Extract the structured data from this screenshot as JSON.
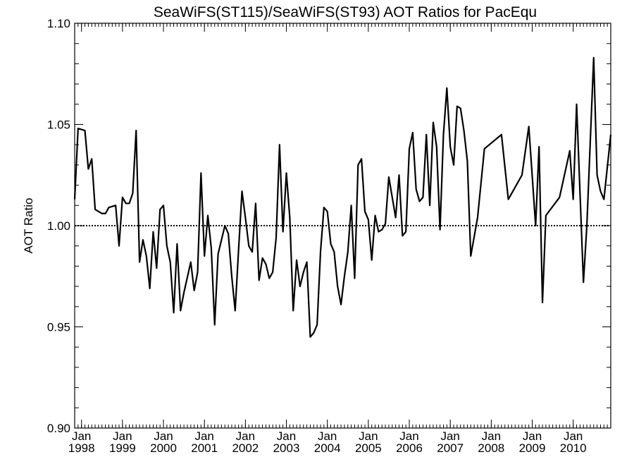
{
  "chart_data": {
    "type": "line",
    "title": "SeaWiFS(ST115)/SeaWiFS(ST93)  AOT Ratios for PacEqu",
    "ylabel": "AOT Ratio",
    "xlabel": "",
    "ylim": [
      0.9,
      1.1
    ],
    "xlim": [
      "1997-11",
      "2010-12"
    ],
    "yticks": [
      {
        "value": 0.9,
        "label": "0.90"
      },
      {
        "value": 0.95,
        "label": "0.95"
      },
      {
        "value": 1.0,
        "label": "1.00"
      },
      {
        "value": 1.05,
        "label": "1.05"
      },
      {
        "value": 1.1,
        "label": "1.10"
      }
    ],
    "xticks": [
      {
        "date": "1998-01",
        "month": "Jan",
        "year": "1998"
      },
      {
        "date": "1999-01",
        "month": "Jan",
        "year": "1999"
      },
      {
        "date": "2000-01",
        "month": "Jan",
        "year": "2000"
      },
      {
        "date": "2001-01",
        "month": "Jan",
        "year": "2001"
      },
      {
        "date": "2002-01",
        "month": "Jan",
        "year": "2002"
      },
      {
        "date": "2003-01",
        "month": "Jan",
        "year": "2003"
      },
      {
        "date": "2004-01",
        "month": "Jan",
        "year": "2004"
      },
      {
        "date": "2005-01",
        "month": "Jan",
        "year": "2005"
      },
      {
        "date": "2006-01",
        "month": "Jan",
        "year": "2006"
      },
      {
        "date": "2007-01",
        "month": "Jan",
        "year": "2007"
      },
      {
        "date": "2008-01",
        "month": "Jan",
        "year": "2008"
      },
      {
        "date": "2009-01",
        "month": "Jan",
        "year": "2009"
      },
      {
        "date": "2010-01",
        "month": "Jan",
        "year": "2010"
      }
    ],
    "reference_line": {
      "y": 1.0,
      "style": "dotted"
    },
    "grid": false,
    "series": [
      {
        "color": "#000000",
        "points": [
          [
            "1997-11",
            1.013
          ],
          [
            "1997-12",
            1.048
          ],
          [
            "1998-02",
            1.047
          ],
          [
            "1998-03",
            1.028
          ],
          [
            "1998-04",
            1.033
          ],
          [
            "1998-05",
            1.008
          ],
          [
            "1998-06",
            1.007
          ],
          [
            "1998-07",
            1.006
          ],
          [
            "1998-08",
            1.006
          ],
          [
            "1998-09",
            1.009
          ],
          [
            "1998-11",
            1.01
          ],
          [
            "1998-12",
            0.99
          ],
          [
            "1999-01",
            1.014
          ],
          [
            "1999-02",
            1.011
          ],
          [
            "1999-03",
            1.011
          ],
          [
            "1999-04",
            1.016
          ],
          [
            "1999-05",
            1.047
          ],
          [
            "1999-06",
            0.982
          ],
          [
            "1999-07",
            0.993
          ],
          [
            "1999-08",
            0.985
          ],
          [
            "1999-09",
            0.969
          ],
          [
            "1999-10",
            0.997
          ],
          [
            "1999-11",
            0.979
          ],
          [
            "1999-12",
            1.008
          ],
          [
            "2000-01",
            1.01
          ],
          [
            "2000-02",
            0.99
          ],
          [
            "2000-03",
            0.982
          ],
          [
            "2000-04",
            0.957
          ],
          [
            "2000-05",
            0.991
          ],
          [
            "2000-06",
            0.958
          ],
          [
            "2000-07",
            0.967
          ],
          [
            "2000-09",
            0.982
          ],
          [
            "2000-10",
            0.968
          ],
          [
            "2000-11",
            0.977
          ],
          [
            "2000-12",
            1.026
          ],
          [
            "2001-01",
            0.985
          ],
          [
            "2001-02",
            1.005
          ],
          [
            "2001-03",
            0.989
          ],
          [
            "2001-04",
            0.951
          ],
          [
            "2001-05",
            0.986
          ],
          [
            "2001-07",
            1.0
          ],
          [
            "2001-08",
            0.996
          ],
          [
            "2001-09",
            0.975
          ],
          [
            "2001-10",
            0.958
          ],
          [
            "2001-11",
            0.988
          ],
          [
            "2001-12",
            1.017
          ],
          [
            "2002-01",
            1.004
          ],
          [
            "2002-02",
            0.99
          ],
          [
            "2002-03",
            0.987
          ],
          [
            "2002-04",
            1.011
          ],
          [
            "2002-05",
            0.973
          ],
          [
            "2002-06",
            0.984
          ],
          [
            "2002-07",
            0.981
          ],
          [
            "2002-08",
            0.974
          ],
          [
            "2002-09",
            0.977
          ],
          [
            "2002-10",
            0.994
          ],
          [
            "2002-11",
            1.04
          ],
          [
            "2002-12",
            0.997
          ],
          [
            "2003-01",
            1.026
          ],
          [
            "2003-02",
            1.004
          ],
          [
            "2003-03",
            0.958
          ],
          [
            "2003-04",
            0.983
          ],
          [
            "2003-05",
            0.97
          ],
          [
            "2003-06",
            0.977
          ],
          [
            "2003-07",
            0.982
          ],
          [
            "2003-08",
            0.945
          ],
          [
            "2003-09",
            0.947
          ],
          [
            "2003-10",
            0.951
          ],
          [
            "2003-11",
            0.987
          ],
          [
            "2003-12",
            1.009
          ],
          [
            "2004-01",
            1.007
          ],
          [
            "2004-02",
            0.991
          ],
          [
            "2004-03",
            0.987
          ],
          [
            "2004-04",
            0.97
          ],
          [
            "2004-05",
            0.961
          ],
          [
            "2004-06",
            0.975
          ],
          [
            "2004-07",
            0.987
          ],
          [
            "2004-08",
            1.01
          ],
          [
            "2004-09",
            0.974
          ],
          [
            "2004-10",
            1.03
          ],
          [
            "2004-11",
            1.033
          ],
          [
            "2004-12",
            1.007
          ],
          [
            "2005-01",
            1.003
          ],
          [
            "2005-02",
            0.983
          ],
          [
            "2005-03",
            1.005
          ],
          [
            "2005-04",
            0.997
          ],
          [
            "2005-05",
            0.998
          ],
          [
            "2005-06",
            1.001
          ],
          [
            "2005-07",
            1.024
          ],
          [
            "2005-09",
            1.004
          ],
          [
            "2005-10",
            1.025
          ],
          [
            "2005-11",
            0.995
          ],
          [
            "2005-12",
            0.997
          ],
          [
            "2006-01",
            1.038
          ],
          [
            "2006-02",
            1.046
          ],
          [
            "2006-03",
            1.018
          ],
          [
            "2006-04",
            1.012
          ],
          [
            "2006-05",
            1.014
          ],
          [
            "2006-06",
            1.045
          ],
          [
            "2006-07",
            1.01
          ],
          [
            "2006-08",
            1.051
          ],
          [
            "2006-09",
            1.039
          ],
          [
            "2006-10",
            0.998
          ],
          [
            "2006-11",
            1.045
          ],
          [
            "2006-12",
            1.068
          ],
          [
            "2007-01",
            1.039
          ],
          [
            "2007-02",
            1.03
          ],
          [
            "2007-03",
            1.059
          ],
          [
            "2007-04",
            1.058
          ],
          [
            "2007-05",
            1.047
          ],
          [
            "2007-06",
            1.032
          ],
          [
            "2007-07",
            0.985
          ],
          [
            "2007-09",
            1.004
          ],
          [
            "2007-11",
            1.038
          ],
          [
            "2008-04",
            1.045
          ],
          [
            "2008-06",
            1.013
          ],
          [
            "2008-10",
            1.025
          ],
          [
            "2008-12",
            1.049
          ],
          [
            "2009-02",
            1.0
          ],
          [
            "2009-03",
            1.039
          ],
          [
            "2009-04",
            0.962
          ],
          [
            "2009-05",
            1.005
          ],
          [
            "2009-09",
            1.014
          ],
          [
            "2009-12",
            1.037
          ],
          [
            "2010-01",
            1.013
          ],
          [
            "2010-02",
            1.06
          ],
          [
            "2010-03",
            1.016
          ],
          [
            "2010-04",
            0.972
          ],
          [
            "2010-05",
            1.0
          ],
          [
            "2010-07",
            1.083
          ],
          [
            "2010-08",
            1.025
          ],
          [
            "2010-09",
            1.017
          ],
          [
            "2010-10",
            1.013
          ],
          [
            "2010-12",
            1.045
          ]
        ]
      }
    ]
  }
}
